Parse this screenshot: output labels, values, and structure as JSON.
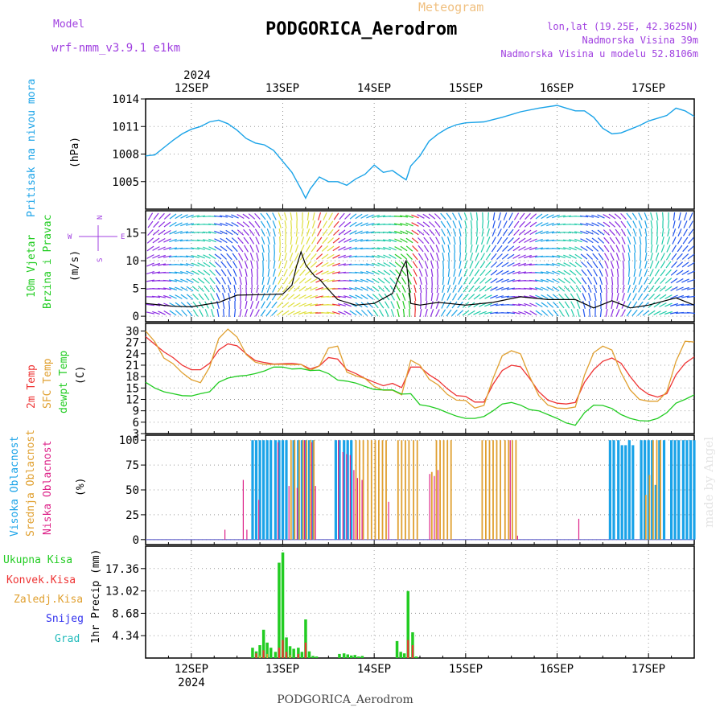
{
  "header": {
    "model_label": "Model",
    "model_name": "wrf-nmm_v3.9.1 e1km",
    "title": "PODGORICA_Aerodrom",
    "meteogram": "Meteogram",
    "lonlat": "lon,lat (19.25E, 42.3625N)",
    "elev": "Nadmorska Visina 39m",
    "elev_model": "Nadmorska Visina u modelu 52.8106m",
    "watermark": "made by Angel",
    "footer": "PODGORICA_Aerodrom"
  },
  "colors": {
    "pressure": "#1aa3e8",
    "temp2m": "#ee3333",
    "sfc": "#e0a030",
    "dew": "#22cc22",
    "high_cloud": "#1aa3e8",
    "mid_cloud": "#e0a030",
    "low_cloud": "#dd2288",
    "precip_total": "#22cc22",
    "precip_conv": "#ee3333",
    "label_purple": "#a040e0"
  },
  "x_axis": {
    "year": "2024",
    "days": [
      "12SEP",
      "13SEP",
      "14SEP",
      "15SEP",
      "16SEP",
      "17SEP"
    ]
  },
  "chart_data": [
    {
      "type": "line",
      "panel": "pressure",
      "ylabel": "Pritisak na nivou mora",
      "unit": "(hPa)",
      "ylim": [
        1002,
        1014
      ],
      "yticks": [
        1005,
        1008,
        1011,
        1014
      ],
      "x": [
        11.5,
        11.6,
        11.7,
        11.8,
        11.9,
        12.0,
        12.1,
        12.2,
        12.3,
        12.4,
        12.5,
        12.6,
        12.7,
        12.8,
        12.9,
        13.0,
        13.1,
        13.2,
        13.25,
        13.3,
        13.4,
        13.5,
        13.6,
        13.7,
        13.8,
        13.9,
        14.0,
        14.1,
        14.2,
        14.3,
        14.35,
        14.4,
        14.5,
        14.6,
        14.7,
        14.8,
        14.9,
        15.0,
        15.2,
        15.4,
        15.6,
        15.8,
        16.0,
        16.1,
        16.2,
        16.3,
        16.4,
        16.5,
        16.6,
        16.7,
        16.8,
        16.9,
        17.0,
        17.2,
        17.3,
        17.4,
        17.5
      ],
      "values": [
        1007.8,
        1007.9,
        1008.7,
        1009.5,
        1010.2,
        1010.7,
        1011.0,
        1011.5,
        1011.7,
        1011.3,
        1010.6,
        1009.7,
        1009.2,
        1009.0,
        1008.4,
        1007.2,
        1006.0,
        1004.2,
        1003.2,
        1004.2,
        1005.5,
        1005.0,
        1005.0,
        1004.6,
        1005.3,
        1005.8,
        1006.8,
        1006.0,
        1006.2,
        1005.5,
        1005.2,
        1006.7,
        1007.8,
        1009.4,
        1010.2,
        1010.8,
        1011.2,
        1011.4,
        1011.5,
        1012.0,
        1012.6,
        1013.0,
        1013.3,
        1013.0,
        1012.7,
        1012.7,
        1012.0,
        1010.8,
        1010.2,
        1010.3,
        1010.7,
        1011.1,
        1011.6,
        1012.2,
        1013.0,
        1012.7,
        1012.1
      ]
    },
    {
      "type": "line",
      "panel": "wind",
      "title_line1": "10m Vjetar",
      "title_line2": "Brzina i Pravac",
      "unit": "(m/s)",
      "compass_n": "N",
      "compass_w": "W",
      "compass_e": "E",
      "compass_s": "S",
      "ylim": [
        -1,
        19
      ],
      "yticks": [
        0,
        5,
        10,
        15
      ],
      "x": [
        11.5,
        11.8,
        12.0,
        12.3,
        12.5,
        12.8,
        13.0,
        13.1,
        13.15,
        13.2,
        13.25,
        13.3,
        13.35,
        13.4,
        13.5,
        13.6,
        13.8,
        14.0,
        14.2,
        14.3,
        14.35,
        14.4,
        14.5,
        14.7,
        15.0,
        15.3,
        15.6,
        15.9,
        16.2,
        16.4,
        16.6,
        16.8,
        17.0,
        17.3,
        17.5
      ],
      "values": [
        2.3,
        1.8,
        1.7,
        2.5,
        3.8,
        3.9,
        4.0,
        5.6,
        9.0,
        11.6,
        9.3,
        8.2,
        7.2,
        6.7,
        4.8,
        3.0,
        2.0,
        2.3,
        4.1,
        8.4,
        10.0,
        2.3,
        2.0,
        2.5,
        2.0,
        2.5,
        3.5,
        3.0,
        3.0,
        1.5,
        2.8,
        1.5,
        2.0,
        3.3,
        2.0
      ]
    },
    {
      "type": "line",
      "panel": "temperature",
      "ylabel_2m": "2m Temp",
      "ylabel_sfc": "SFC Temp",
      "ylabel_dew": "dewpt Temp",
      "unit": "(C)",
      "ylim": [
        3,
        32
      ],
      "yticks": [
        3,
        6,
        9,
        12,
        15,
        18,
        21,
        24,
        27,
        30
      ],
      "x": [
        11.5,
        11.6,
        11.7,
        11.8,
        11.9,
        12.0,
        12.1,
        12.2,
        12.3,
        12.4,
        12.5,
        12.6,
        12.7,
        12.8,
        12.9,
        13.0,
        13.1,
        13.2,
        13.3,
        13.4,
        13.5,
        13.6,
        13.7,
        13.8,
        13.9,
        14.0,
        14.1,
        14.2,
        14.3,
        14.4,
        14.5,
        14.6,
        14.7,
        14.8,
        14.9,
        15.0,
        15.1,
        15.2,
        15.3,
        15.4,
        15.5,
        15.6,
        15.7,
        15.8,
        15.9,
        16.0,
        16.1,
        16.2,
        16.3,
        16.4,
        16.5,
        16.6,
        16.7,
        16.8,
        16.9,
        17.0,
        17.1,
        17.2,
        17.3,
        17.4,
        17.5
      ],
      "series": [
        {
          "name": "2m Temp",
          "values": [
            28.5,
            26.5,
            24.5,
            23.0,
            21.0,
            19.8,
            19.8,
            21.5,
            25.0,
            26.6,
            26.1,
            24.0,
            22.2,
            21.7,
            21.3,
            21.4,
            21.5,
            21.2,
            20.0,
            20.8,
            23.0,
            22.6,
            19.8,
            18.8,
            17.5,
            16.5,
            15.6,
            16.2,
            15.1,
            20.5,
            20.5,
            18.5,
            17.0,
            14.8,
            13.0,
            12.8,
            11.3,
            11.3,
            16.0,
            19.6,
            21.0,
            20.6,
            17.5,
            14.0,
            11.8,
            11.0,
            10.8,
            11.2,
            16.5,
            19.8,
            22.0,
            22.9,
            21.5,
            18.0,
            15.0,
            13.3,
            12.6,
            13.5,
            18.5,
            21.5,
            23.2
          ]
        },
        {
          "name": "SFC Temp",
          "values": [
            30.0,
            27.2,
            22.9,
            21.4,
            19.0,
            17.2,
            16.4,
            20.5,
            28.0,
            30.5,
            28.4,
            23.8,
            21.8,
            21.2,
            21.2,
            21.2,
            21.1,
            21.2,
            19.6,
            20.8,
            25.5,
            26.0,
            19.2,
            18.2,
            17.5,
            15.4,
            14.4,
            14.4,
            13.2,
            22.3,
            21.0,
            17.3,
            15.8,
            13.3,
            11.8,
            11.7,
            9.7,
            10.4,
            17.5,
            23.5,
            24.8,
            24.0,
            18.0,
            13.0,
            10.5,
            9.7,
            9.6,
            10.0,
            18.4,
            24.3,
            26.0,
            25.0,
            19.0,
            14.5,
            12.0,
            11.5,
            11.5,
            14.0,
            22.0,
            27.3,
            27.1
          ]
        },
        {
          "name": "dewpt Temp",
          "values": [
            16.5,
            15.0,
            14.0,
            13.5,
            13.0,
            12.9,
            13.5,
            14.0,
            16.5,
            17.6,
            18.1,
            18.3,
            18.8,
            19.5,
            20.5,
            20.5,
            20.0,
            20.1,
            19.6,
            19.7,
            18.8,
            17.1,
            16.8,
            16.3,
            15.4,
            14.6,
            14.5,
            14.5,
            13.4,
            13.5,
            10.6,
            10.2,
            9.5,
            8.5,
            7.6,
            7.0,
            7.0,
            7.5,
            9.0,
            10.8,
            11.2,
            10.5,
            9.3,
            9.0,
            8.0,
            7.0,
            5.8,
            5.2,
            8.5,
            10.5,
            10.4,
            9.6,
            8.0,
            7.0,
            6.4,
            6.3,
            7.0,
            8.5,
            11.0,
            12.0,
            13.2
          ]
        }
      ]
    },
    {
      "type": "bar",
      "panel": "clouds",
      "ylabel_high": "Visoka Oblacnost",
      "ylabel_mid": "Srednja Oblacnost",
      "ylabel_low": "Niska Oblacnost",
      "unit": "(%)",
      "ylim": [
        -5,
        105
      ],
      "yticks": [
        0,
        25,
        50,
        75,
        100
      ],
      "series": [
        {
          "name": "Visoka Oblacnost",
          "x": [
            12.67,
            12.71,
            12.75,
            12.79,
            12.83,
            12.87,
            12.92,
            12.96,
            13.0,
            13.04,
            13.12,
            13.17,
            13.21,
            13.25,
            13.29,
            13.33,
            13.58,
            13.62,
            13.67,
            13.71,
            13.75,
            16.58,
            16.62,
            16.67,
            16.71,
            16.75,
            16.79,
            16.83,
            16.92,
            16.96,
            17.0,
            17.04,
            17.08,
            17.12,
            17.17,
            17.25,
            17.29,
            17.33,
            17.38,
            17.42,
            17.46,
            17.5
          ],
          "values": [
            100,
            100,
            100,
            100,
            100,
            100,
            100,
            100,
            100,
            100,
            100,
            100,
            100,
            100,
            100,
            100,
            100,
            100,
            100,
            100,
            100,
            100,
            100,
            100,
            95,
            95,
            100,
            95,
            100,
            100,
            100,
            100,
            55,
            100,
            100,
            100,
            100,
            100,
            100,
            100,
            100,
            100
          ]
        },
        {
          "name": "Srednja Oblacnost",
          "x": [
            13.08,
            13.12,
            13.17,
            13.21,
            13.25,
            13.29,
            13.33,
            13.79,
            13.83,
            13.87,
            13.92,
            13.96,
            14.0,
            14.04,
            14.08,
            14.12,
            14.25,
            14.29,
            14.33,
            14.37,
            14.42,
            14.46,
            14.62,
            14.67,
            14.71,
            14.75,
            14.79,
            14.83,
            15.17,
            15.21,
            15.25,
            15.29,
            15.33,
            15.37,
            15.42,
            15.46,
            15.5,
            15.54,
            16.96,
            17.0,
            17.04,
            17.08,
            17.12
          ],
          "values": [
            100,
            100,
            100,
            100,
            100,
            100,
            100,
            100,
            100,
            100,
            100,
            100,
            100,
            100,
            100,
            100,
            100,
            100,
            100,
            100,
            100,
            100,
            68,
            100,
            100,
            100,
            100,
            100,
            100,
            100,
            100,
            100,
            100,
            100,
            100,
            100,
            100,
            100,
            45,
            65,
            100,
            100,
            100
          ]
        },
        {
          "name": "Niska Oblacnost",
          "x": [
            12.38,
            12.58,
            12.62,
            12.75,
            12.96,
            13.08,
            13.17,
            13.25,
            13.33,
            13.37,
            13.62,
            13.67,
            13.71,
            13.75,
            13.79,
            13.83,
            13.88,
            14.17,
            14.62,
            14.67,
            14.71,
            15.5,
            15.58,
            16.25
          ],
          "values": [
            10,
            60,
            10,
            40,
            98,
            54,
            52,
            100,
            98,
            54,
            100,
            88,
            86,
            85,
            70,
            62,
            60,
            38,
            66,
            64,
            70,
            100,
            4,
            21
          ]
        }
      ]
    },
    {
      "type": "bar",
      "panel": "precip",
      "ylabel": "1hr Precip (mm)",
      "legend": [
        "Ukupna Kisa",
        "Konvek.Kisa",
        "Zaledj.Kisa",
        "Snijeg",
        "Grad"
      ],
      "legend_colors": [
        "#22cc22",
        "#ee3333",
        "#e0a030",
        "#3333ee",
        "#22bbbb"
      ],
      "ylim": [
        0,
        21.7
      ],
      "yticks": [
        "4.34",
        "8.68",
        "13.02",
        "17.36"
      ],
      "series": [
        {
          "name": "Ukupna Kisa",
          "x": [
            12.67,
            12.71,
            12.75,
            12.79,
            12.83,
            12.87,
            12.92,
            12.96,
            13.0,
            13.04,
            13.08,
            13.12,
            13.17,
            13.21,
            13.25,
            13.29,
            13.33,
            13.37,
            13.62,
            13.67,
            13.71,
            13.75,
            13.79,
            13.83,
            13.87,
            14.25,
            14.29,
            14.33,
            14.37,
            14.42,
            14.46
          ],
          "values": [
            2.0,
            1.3,
            2.5,
            5.5,
            3.0,
            2.0,
            1.2,
            18.5,
            20.5,
            4.0,
            2.3,
            1.8,
            2.0,
            1.2,
            7.5,
            1.3,
            0.4,
            0.3,
            0.8,
            0.9,
            0.7,
            0.5,
            0.6,
            0.3,
            0.4,
            3.3,
            1.2,
            0.9,
            13.0,
            5.0,
            0.3
          ]
        },
        {
          "name": "Konvek.Kisa",
          "x": [
            12.71,
            12.79,
            12.96,
            13.0,
            13.04,
            13.17,
            13.25,
            14.37,
            14.42
          ],
          "values": [
            0.9,
            1.5,
            2.0,
            3.5,
            1.2,
            0.8,
            3.0,
            3.5,
            2.5
          ]
        },
        {
          "name": "Zaledj.Kisa",
          "x": [
            12.75,
            12.83,
            13.08
          ],
          "values": [
            0.5,
            0.8,
            0.6
          ]
        }
      ]
    }
  ]
}
